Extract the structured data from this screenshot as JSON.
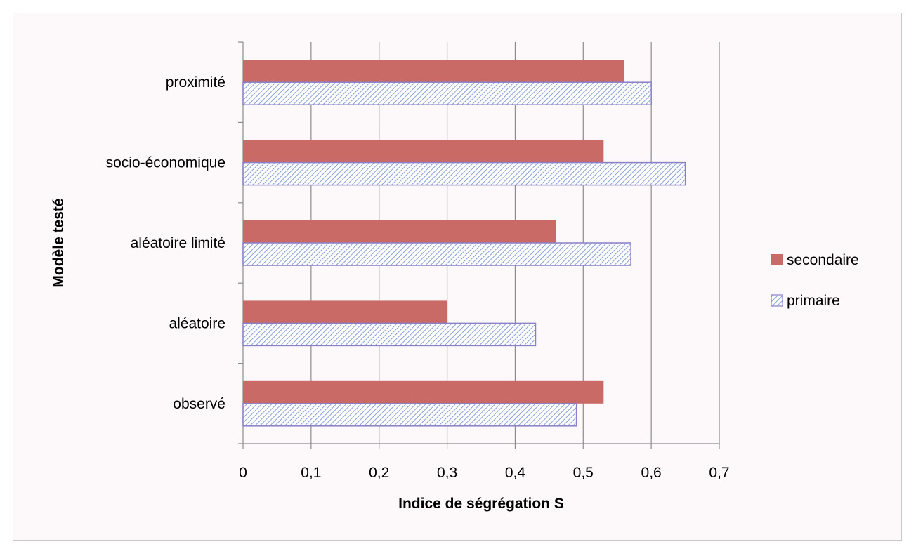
{
  "chart_data": {
    "type": "bar",
    "orientation": "horizontal",
    "title": "",
    "xlabel": "Indice de ségrégation S",
    "ylabel": "Modèle testé",
    "categories": [
      "proximité",
      "socio-économique",
      "aléatoire limité",
      "aléatoire",
      "observé"
    ],
    "series": [
      {
        "name": "secondaire",
        "values": [
          0.56,
          0.53,
          0.46,
          0.3,
          0.53
        ],
        "color": "#c96a66",
        "pattern": "solid"
      },
      {
        "name": "primaire",
        "values": [
          0.6,
          0.65,
          0.57,
          0.43,
          0.49
        ],
        "color": "#8a7fc8",
        "pattern": "hatched"
      }
    ],
    "xlim": [
      0,
      0.7
    ],
    "xticks": [
      0,
      0.1,
      0.2,
      0.3,
      0.4,
      0.5,
      0.6,
      0.7
    ],
    "xtick_labels": [
      "0",
      "0,1",
      "0,2",
      "0,3",
      "0,4",
      "0,5",
      "0,6",
      "0,7"
    ],
    "grid": "vertical",
    "legend_position": "right"
  }
}
